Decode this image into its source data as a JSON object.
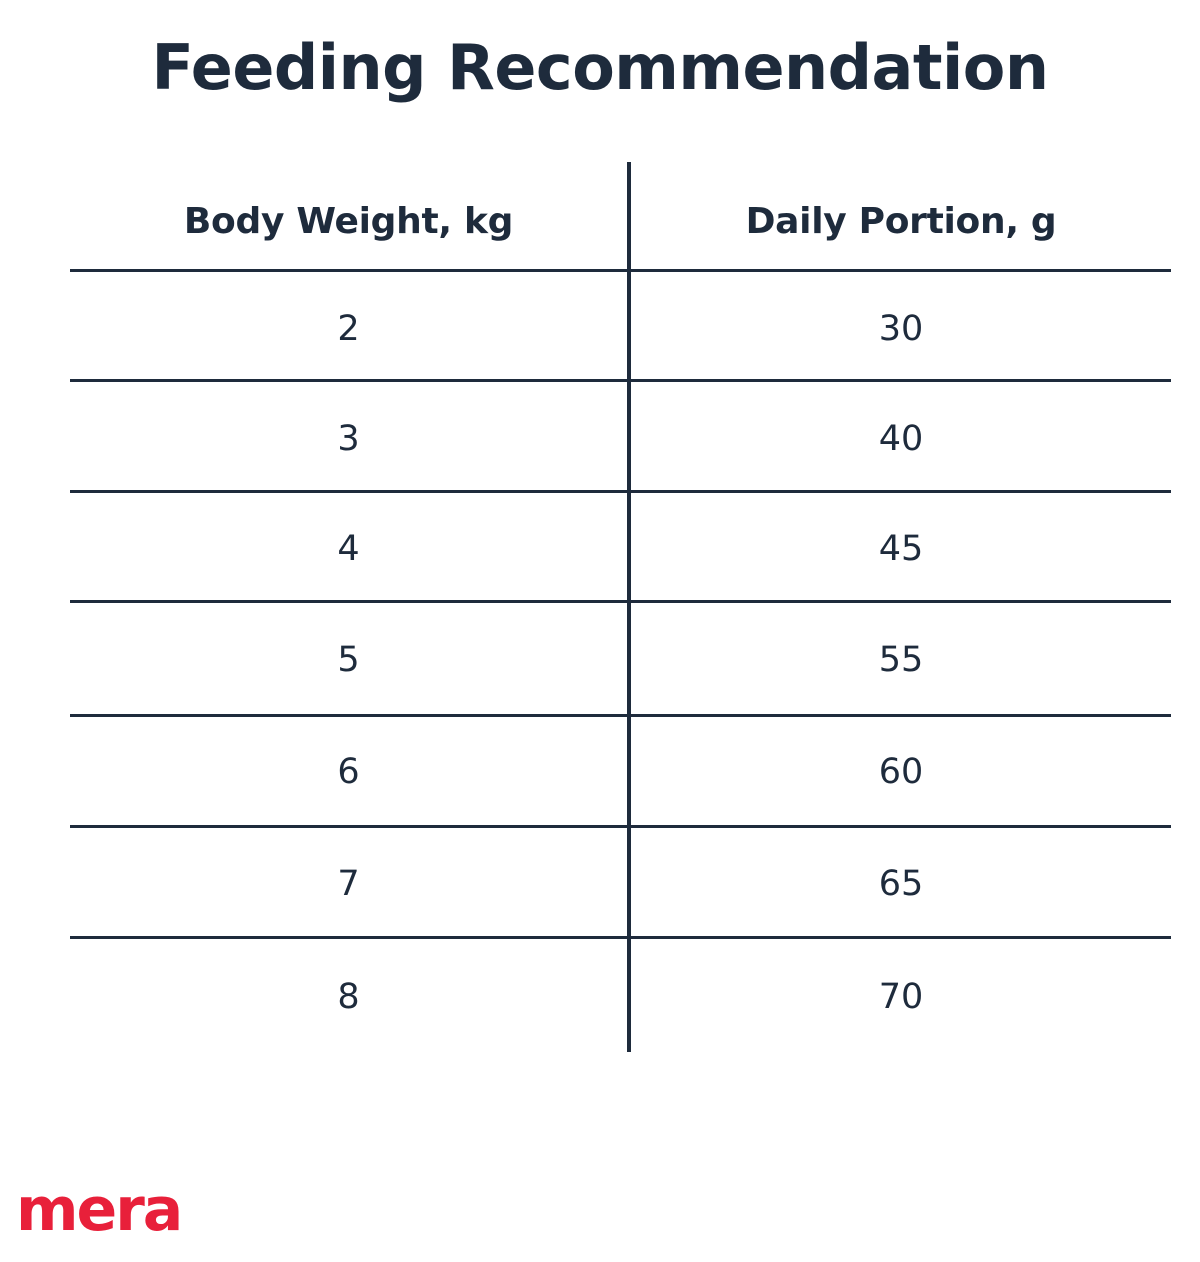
{
  "title": "Feeding Recommendation",
  "colors": {
    "text": "#1e2b3c",
    "line": "#1e2b3c",
    "brand": "#e8203a",
    "background": "#ffffff"
  },
  "table": {
    "headers": [
      "Body Weight, kg",
      "Daily Portion, g"
    ],
    "rows": [
      [
        "2",
        "30"
      ],
      [
        "3",
        "40"
      ],
      [
        "4",
        "45"
      ],
      [
        "5",
        "55"
      ],
      [
        "6",
        "60"
      ],
      [
        "7",
        "65"
      ],
      [
        "8",
        "70"
      ]
    ]
  },
  "brand": {
    "logo_text": "mera"
  }
}
